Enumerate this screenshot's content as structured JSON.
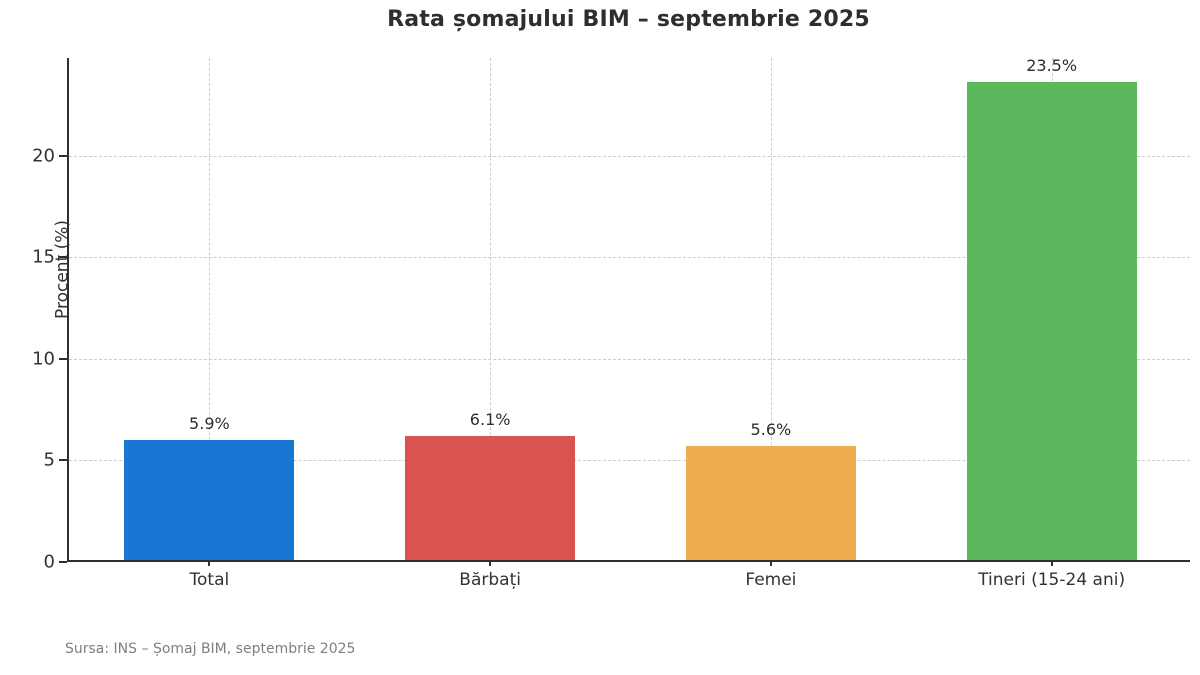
{
  "title": "Rata șomajului BIM – septembrie 2025",
  "source_note": "Sursa: INS – Șomaj BIM, septembrie 2025",
  "chart_data": {
    "type": "bar",
    "title": "Rata șomajului BIM – septembrie 2025",
    "categories": [
      "Total",
      "Bărbați",
      "Femei",
      "Tineri (15-24 ani)"
    ],
    "values": [
      5.9,
      6.1,
      5.6,
      23.5
    ],
    "value_labels": [
      "5.9%",
      "6.1%",
      "5.6%",
      "23.5%"
    ],
    "bar_colors": [
      "#1976d2",
      "#d9534f",
      "#f0ad4e",
      "#5cb85c"
    ],
    "xlabel": "",
    "ylabel": "Procent (%)",
    "yticks": [
      0,
      5,
      10,
      15,
      20
    ],
    "ylim": [
      0,
      24.8
    ],
    "grid": "dashed gridlines on both axes",
    "legend": "none",
    "annotation": "Sursa: INS – Șomaj BIM, septembrie 2025"
  },
  "style_colors": {
    "axis": "#2f2f2f",
    "grid": "#cccccc",
    "title_text": "#2e2e2e",
    "tick_text": "#333333",
    "source_text": "#808080",
    "background": "#ffffff"
  }
}
